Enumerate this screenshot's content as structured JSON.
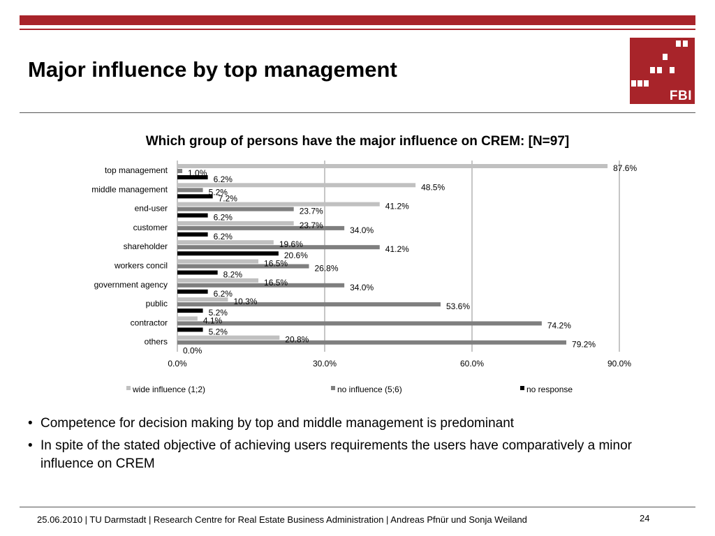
{
  "slide": {
    "title": "Major influence by top management",
    "logo_text": "FBI",
    "bullets": [
      "Competence for decision making by top and middle management is predominant",
      "In spite of the stated objective of achieving users requirements the users have comparatively a minor influence on CREM"
    ],
    "footer": "25.06.2010  | TU Darmstadt | Research Centre for Real Estate Business Administration |  Andreas Pfnür und Sonja Weiland",
    "page_number": "24"
  },
  "colors": {
    "brand": "#a8242a",
    "wide_influence": "#c0c0c0",
    "no_influence": "#7f7f7f",
    "no_response": "#000000"
  },
  "chart_data": {
    "type": "bar",
    "orientation": "horizontal",
    "title": "Which group of persons have the major influence on CREM:  [N=97]",
    "categories": [
      "top management",
      "middle management",
      "end-user",
      "customer",
      "shareholder",
      "workers concil",
      "government agency",
      "public",
      "contractor",
      "others"
    ],
    "series": [
      {
        "name": "wide influence (1;2)",
        "values": [
          87.6,
          48.5,
          41.2,
          23.7,
          19.6,
          16.5,
          16.5,
          10.3,
          4.1,
          20.8
        ],
        "labels": [
          "87.6%",
          "48.5%",
          "41.2%",
          "23.7%",
          "19.6%",
          "16.5%",
          "16.5%",
          "10.3%",
          "4.1%",
          "20.8%"
        ]
      },
      {
        "name": "no influence (5;6)",
        "values": [
          1.0,
          5.2,
          23.7,
          34.0,
          41.2,
          26.8,
          34.0,
          53.6,
          74.2,
          79.2
        ],
        "labels": [
          "1.0%",
          "5.2%",
          "23.7%",
          "34.0%",
          "41.2%",
          "26.8%",
          "34.0%",
          "53.6%",
          "74.2%",
          "79.2%"
        ]
      },
      {
        "name": "no response",
        "values": [
          6.2,
          7.2,
          6.2,
          6.2,
          20.6,
          8.2,
          6.2,
          5.2,
          5.2,
          0.0
        ],
        "labels": [
          "6.2%",
          "7.2%",
          "6.2%",
          "6.2%",
          "20.6%",
          "8.2%",
          "6.2%",
          "5.2%",
          "5.2%",
          "0.0%"
        ]
      }
    ],
    "xlim": [
      0,
      90
    ],
    "xticks": [
      0,
      30,
      60,
      90
    ],
    "xtick_labels": [
      "0.0%",
      "30.0%",
      "60.0%",
      "90.0%"
    ],
    "grid": true,
    "legend_position": "bottom"
  }
}
